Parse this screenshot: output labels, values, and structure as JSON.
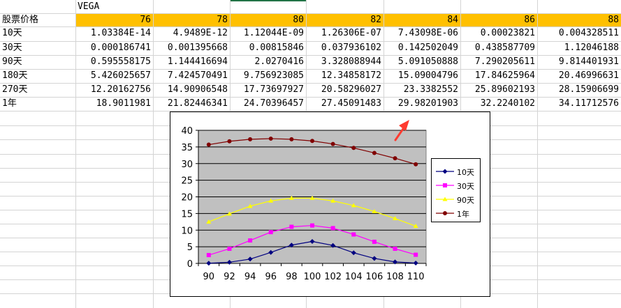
{
  "sheet": {
    "title_cell": "VEGA",
    "row_header_label": "股票价格",
    "header_prices": [
      "76",
      "78",
      "80",
      "82",
      "84",
      "86",
      "88"
    ],
    "rows": [
      {
        "label": "10天",
        "values": [
          "1.03384E-14",
          "4.9489E-12",
          "1.12044E-09",
          "1.26306E-07",
          "7.43098E-06",
          "0.00023821",
          "0.004328511"
        ]
      },
      {
        "label": "30天",
        "values": [
          "0.000186741",
          "0.001395668",
          "0.00815846",
          "0.037936102",
          "0.142502049",
          "0.438587709",
          "1.12046188"
        ]
      },
      {
        "label": "90天",
        "values": [
          "0.595558175",
          "1.144416694",
          "2.0270416",
          "3.328088944",
          "5.091050888",
          "7.290205611",
          "9.814401931"
        ]
      },
      {
        "label": "180天",
        "values": [
          "5.426025657",
          "7.424570491",
          "9.756923085",
          "12.34858172",
          "15.09004796",
          "17.84625964",
          "20.46996631"
        ]
      },
      {
        "label": "270天",
        "values": [
          "12.20162756",
          "14.90906548",
          "17.73697927",
          "20.58296027",
          "23.3382552",
          "25.89602193",
          "28.15906699"
        ]
      },
      {
        "label": "1年",
        "values": [
          "18.9011981",
          "21.82446341",
          "24.70396457",
          "27.45091483",
          "29.98201903",
          "32.2240102",
          "34.11712576"
        ]
      }
    ],
    "colors": {
      "header_fill": "#ffc000",
      "grid": "#d4d4d4"
    }
  },
  "chart_data": {
    "type": "line",
    "title": "",
    "xlabel": "",
    "ylabel": "",
    "categories": [
      "90",
      "92",
      "94",
      "96",
      "98",
      "100",
      "102",
      "104",
      "106",
      "108",
      "110"
    ],
    "y_ticks": [
      "0",
      "5",
      "10",
      "15",
      "20",
      "25",
      "30",
      "35",
      "40"
    ],
    "ylim": [
      0,
      40
    ],
    "grid": true,
    "plot_background": "#c0c0c0",
    "legend_position": "right",
    "series": [
      {
        "name": "10天",
        "color": "#000080",
        "marker": "diamond",
        "values": [
          0.05,
          0.35,
          1.3,
          3.3,
          5.5,
          6.6,
          5.4,
          3.2,
          1.5,
          0.45,
          0.1
        ]
      },
      {
        "name": "30天",
        "color": "#ff00ff",
        "marker": "square",
        "values": [
          2.5,
          4.4,
          6.9,
          9.4,
          11.0,
          11.4,
          10.6,
          8.7,
          6.5,
          4.4,
          2.6
        ]
      },
      {
        "name": "90天",
        "color": "#ffff00",
        "marker": "triangle",
        "values": [
          12.5,
          14.9,
          17.2,
          18.8,
          19.6,
          19.6,
          18.8,
          17.4,
          15.6,
          13.5,
          11.2
        ]
      },
      {
        "name": "1年",
        "color": "#800000",
        "marker": "circle",
        "values": [
          35.7,
          36.7,
          37.3,
          37.5,
          37.3,
          36.8,
          35.9,
          34.7,
          33.2,
          31.6,
          29.8
        ]
      }
    ]
  },
  "annotation": {
    "icon": "red-arrow-icon",
    "color": "#ff3b30"
  }
}
